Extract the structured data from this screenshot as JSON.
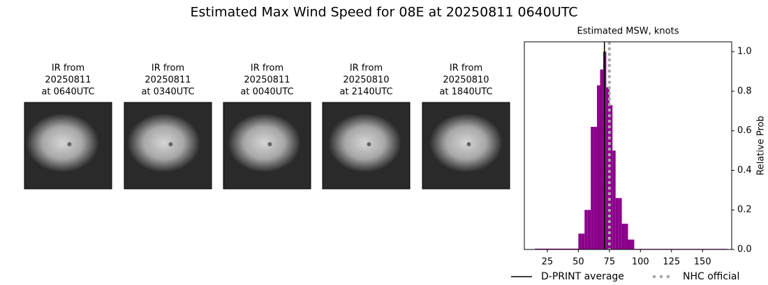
{
  "title": "Estimated Max Wind Speed for 08E at 20250811 0640UTC",
  "panels": [
    {
      "lines": [
        "IR from",
        "20250811",
        "at 0640UTC"
      ]
    },
    {
      "lines": [
        "IR from",
        "20250811",
        "at 0340UTC"
      ]
    },
    {
      "lines": [
        "IR from",
        "20250811",
        "at 0040UTC"
      ]
    },
    {
      "lines": [
        "IR from",
        "20250810",
        "at 2140UTC"
      ]
    },
    {
      "lines": [
        "IR from",
        "20250810",
        "at 1840UTC"
      ]
    }
  ],
  "chart_data": {
    "type": "histogram",
    "title": "Estimated MSW, knots",
    "y_label": "Relative Prob",
    "bins": [
      15,
      50,
      52.5,
      55,
      57.5,
      60,
      62.5,
      65,
      67.5,
      70,
      72.5,
      75,
      77.5,
      80,
      82.5,
      85,
      87.5,
      90,
      92.5,
      95,
      170
    ],
    "counts": [
      0.004,
      0.08,
      0.08,
      0.2,
      0.2,
      0.62,
      0.62,
      0.83,
      0.91,
      1.0,
      0.82,
      0.73,
      0.5,
      0.26,
      0.26,
      0.13,
      0.13,
      0.05,
      0.05,
      0.003
    ],
    "color": "#8b008b",
    "xlim": [
      6.5,
      173.5
    ],
    "xticks": [
      25,
      50,
      75,
      100,
      125,
      150
    ],
    "ylim": [
      0,
      1.05
    ],
    "yticks": [
      {
        "value": 0,
        "label": "0.0"
      },
      {
        "value": 0.2,
        "label": "0.2"
      },
      {
        "value": 0.4,
        "label": "0.4"
      },
      {
        "value": 0.6,
        "label": "0.6"
      },
      {
        "value": 0.8,
        "label": "0.8"
      },
      {
        "value": 1.0,
        "label": "1.0"
      }
    ],
    "lines": [
      {
        "name": "D-PRINT average",
        "value": 71,
        "color": "#000000",
        "style": "solid"
      },
      {
        "name": "NHC official",
        "value": 75,
        "color": "#a9a9a9",
        "style": "dotted"
      }
    ]
  }
}
